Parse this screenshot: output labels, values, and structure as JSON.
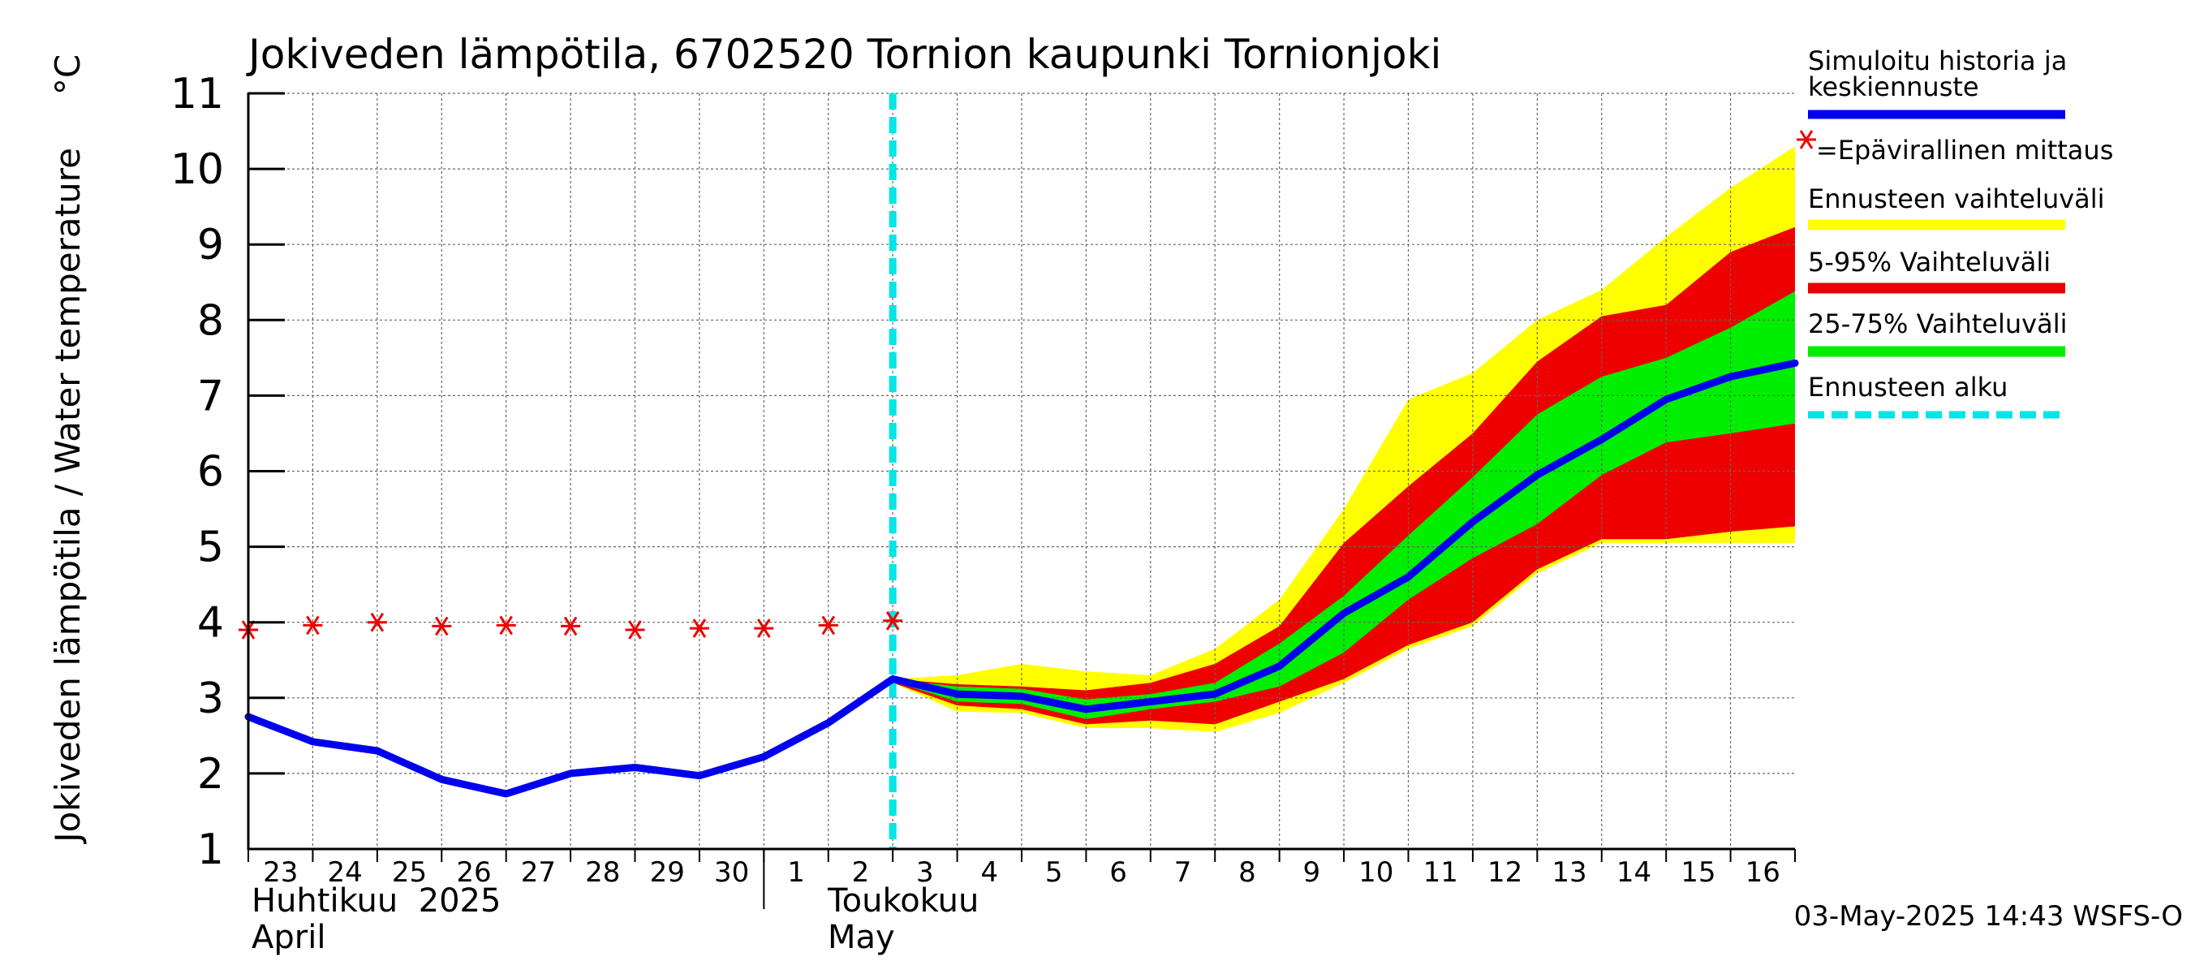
{
  "chart_data": {
    "type": "area",
    "title": "Jokiveden lämpötila, 6702520 Tornion kaupunki Tornionjoki",
    "ylabel": "Jokiveden lämpötila / Water temperature",
    "yunit": "°C",
    "ylim": [
      1,
      11
    ],
    "yticks": [
      "1",
      "2",
      "3",
      "4",
      "5",
      "6",
      "7",
      "8",
      "9",
      "10",
      "11"
    ],
    "xlim": [
      "2025-04-23",
      "2025-05-17"
    ],
    "x_tick_labels": [
      "23",
      "24",
      "25",
      "26",
      "27",
      "28",
      "29",
      "30",
      "1",
      "2",
      "3",
      "4",
      "5",
      "6",
      "7",
      "8",
      "9",
      "10",
      "11",
      "12",
      "13",
      "14",
      "15",
      "16"
    ],
    "month_labels": {
      "april_fi": "Huhtikuu  2025",
      "april_en": "April",
      "may_fi": "Toukokuu",
      "may_en": "May"
    },
    "grid": true,
    "legend_position": "right",
    "timestamp": "03-May-2025 14:43 WSFS-O",
    "forecast_start": "2025-05-03",
    "colors": {
      "simulated": "#0000ee",
      "measurement": "#ee0000",
      "forecast_range": "#ffff00",
      "range_5_95": "#ee0000",
      "range_25_75": "#00ee00",
      "forecast_start": "#00e5e5"
    },
    "legend": {
      "simulated_line1": "Simuloitu historia ja",
      "simulated_line2": "keskiennuste",
      "measurement": "=Epävirallinen mittaus",
      "forecast_range": "Ennusteen vaihteluväli",
      "range_5_95": "5-95% Vaihteluväli",
      "range_25_75": "25-75% Vaihteluväli",
      "forecast_start": "Ennusteen alku"
    },
    "series": {
      "simulated": {
        "x": [
          "2025-04-23",
          "2025-04-24",
          "2025-04-25",
          "2025-04-26",
          "2025-04-27",
          "2025-04-28",
          "2025-04-29",
          "2025-04-30",
          "2025-05-01",
          "2025-05-02",
          "2025-05-03",
          "2025-05-04",
          "2025-05-05",
          "2025-05-06",
          "2025-05-07",
          "2025-05-08",
          "2025-05-09",
          "2025-05-10",
          "2025-05-11",
          "2025-05-12",
          "2025-05-13",
          "2025-05-14",
          "2025-05-15",
          "2025-05-16",
          "2025-05-17"
        ],
        "y": [
          2.75,
          2.42,
          2.3,
          1.92,
          1.73,
          2.0,
          2.08,
          1.97,
          2.22,
          2.67,
          3.25,
          3.05,
          3.02,
          2.85,
          2.95,
          3.05,
          3.42,
          4.12,
          4.6,
          5.33,
          5.95,
          6.42,
          6.95,
          7.25,
          7.43
        ]
      },
      "measurement": {
        "x": [
          "2025-04-23",
          "2025-04-24",
          "2025-04-25",
          "2025-04-26",
          "2025-04-27",
          "2025-04-28",
          "2025-04-29",
          "2025-04-30",
          "2025-05-01",
          "2025-05-02",
          "2025-05-03"
        ],
        "y": [
          3.9,
          3.96,
          4.0,
          3.95,
          3.96,
          3.95,
          3.9,
          3.92,
          3.92,
          3.96,
          4.02
        ]
      },
      "forecast_bands": {
        "x": [
          "2025-05-03",
          "2025-05-04",
          "2025-05-05",
          "2025-05-06",
          "2025-05-07",
          "2025-05-08",
          "2025-05-09",
          "2025-05-10",
          "2025-05-11",
          "2025-05-12",
          "2025-05-13",
          "2025-05-14",
          "2025-05-15",
          "2025-05-16",
          "2025-05-17"
        ],
        "range_upper": [
          3.25,
          3.3,
          3.45,
          3.35,
          3.3,
          3.65,
          4.3,
          5.5,
          6.95,
          7.3,
          8.0,
          8.4,
          9.1,
          9.75,
          10.3
        ],
        "range_lower": [
          3.2,
          2.82,
          2.8,
          2.6,
          2.6,
          2.55,
          2.8,
          3.2,
          3.65,
          3.95,
          4.65,
          5.05,
          5.05,
          5.05,
          5.05
        ],
        "p95": [
          3.25,
          3.18,
          3.15,
          3.1,
          3.2,
          3.45,
          3.95,
          5.05,
          5.8,
          6.5,
          7.45,
          8.05,
          8.2,
          8.9,
          9.23
        ],
        "p5": [
          3.2,
          2.9,
          2.85,
          2.65,
          2.7,
          2.65,
          2.95,
          3.25,
          3.7,
          4.0,
          4.7,
          5.1,
          5.1,
          5.2,
          5.27
        ],
        "p75": [
          3.25,
          3.15,
          3.12,
          2.98,
          3.05,
          3.2,
          3.72,
          4.35,
          5.15,
          5.92,
          6.75,
          7.25,
          7.5,
          7.9,
          8.38
        ],
        "p25": [
          3.22,
          2.95,
          2.92,
          2.72,
          2.85,
          2.95,
          3.15,
          3.6,
          4.3,
          4.85,
          5.3,
          5.95,
          6.38,
          6.5,
          6.63
        ]
      }
    }
  }
}
